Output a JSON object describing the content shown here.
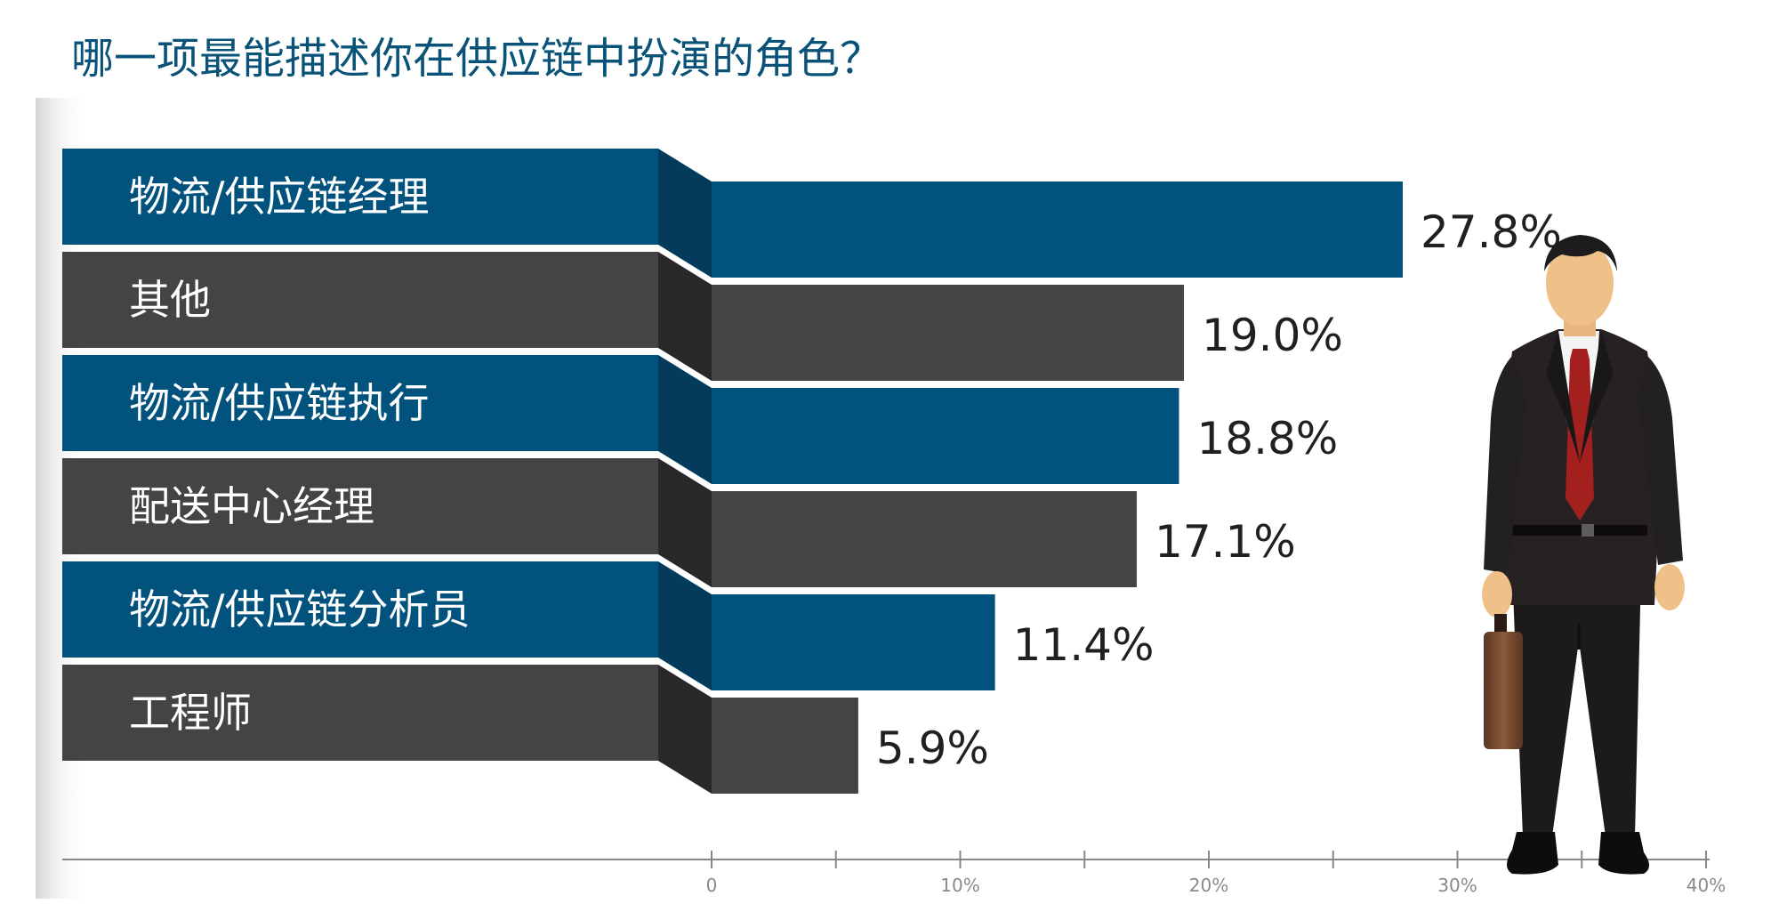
{
  "chart_data": {
    "type": "bar",
    "orientation": "horizontal",
    "title": "哪一项最能描述你在供应链中扮演的角色？",
    "categories": [
      "物流/供应链经理",
      "其他",
      "物流/供应链执行",
      "配送中心经理",
      "物流/供应链分析员",
      "工程师"
    ],
    "values": [
      27.8,
      19.0,
      18.8,
      17.1,
      11.4,
      5.9
    ],
    "value_labels": [
      "27.8%",
      "19.0%",
      "18.8%",
      "17.1%",
      "11.4%",
      "5.9%"
    ],
    "xlim": [
      0,
      40
    ],
    "ticks": [
      0,
      10,
      20,
      30,
      40
    ],
    "tick_labels": [
      "0",
      "10%",
      "20%",
      "30%",
      "40%"
    ],
    "grid": false,
    "colors": {
      "blue": "#02527e",
      "blue_dark": "#043a5c",
      "gray": "#454344",
      "gray_dark": "#2a2728",
      "title": "#0a5378",
      "value_text": "#231f20",
      "tick_text": "#8a8a8a",
      "axis": "#888888"
    }
  }
}
